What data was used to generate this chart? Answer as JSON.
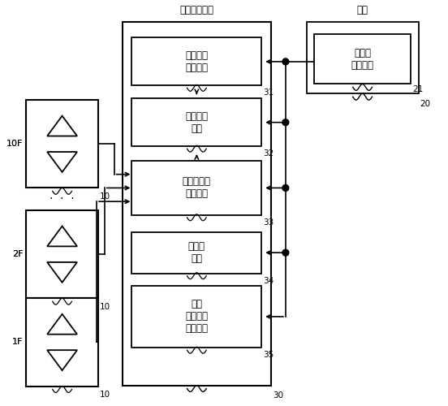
{
  "title": "电梯控制装置",
  "cabin_title": "轿厢",
  "bg_color": "#ffffff",
  "text_color": "#000000",
  "inner_boxes": [
    {
      "id": "standby",
      "label": "待机楼层\n确定单元",
      "num": "31"
    },
    {
      "id": "car_run",
      "label": "轿厢运转\n单元",
      "num": "32"
    },
    {
      "id": "floor_call",
      "label": "层站呼梯不\n响应单元",
      "num": "33"
    },
    {
      "id": "door",
      "label": "门开闭\n单元",
      "num": "34"
    },
    {
      "id": "ac",
      "label": "空调\n动作强制\n停止单元",
      "num": "35"
    }
  ],
  "outer_box_num": "30",
  "cabin_inner_label": "滞留物\n检测单元",
  "cabin_inner_num": "21",
  "cabin_outer_num": "20",
  "floor_panels": [
    {
      "label": "10F",
      "num": "10"
    },
    {
      "label": "2F",
      "num": "10"
    },
    {
      "label": "1F",
      "num": "10"
    }
  ]
}
